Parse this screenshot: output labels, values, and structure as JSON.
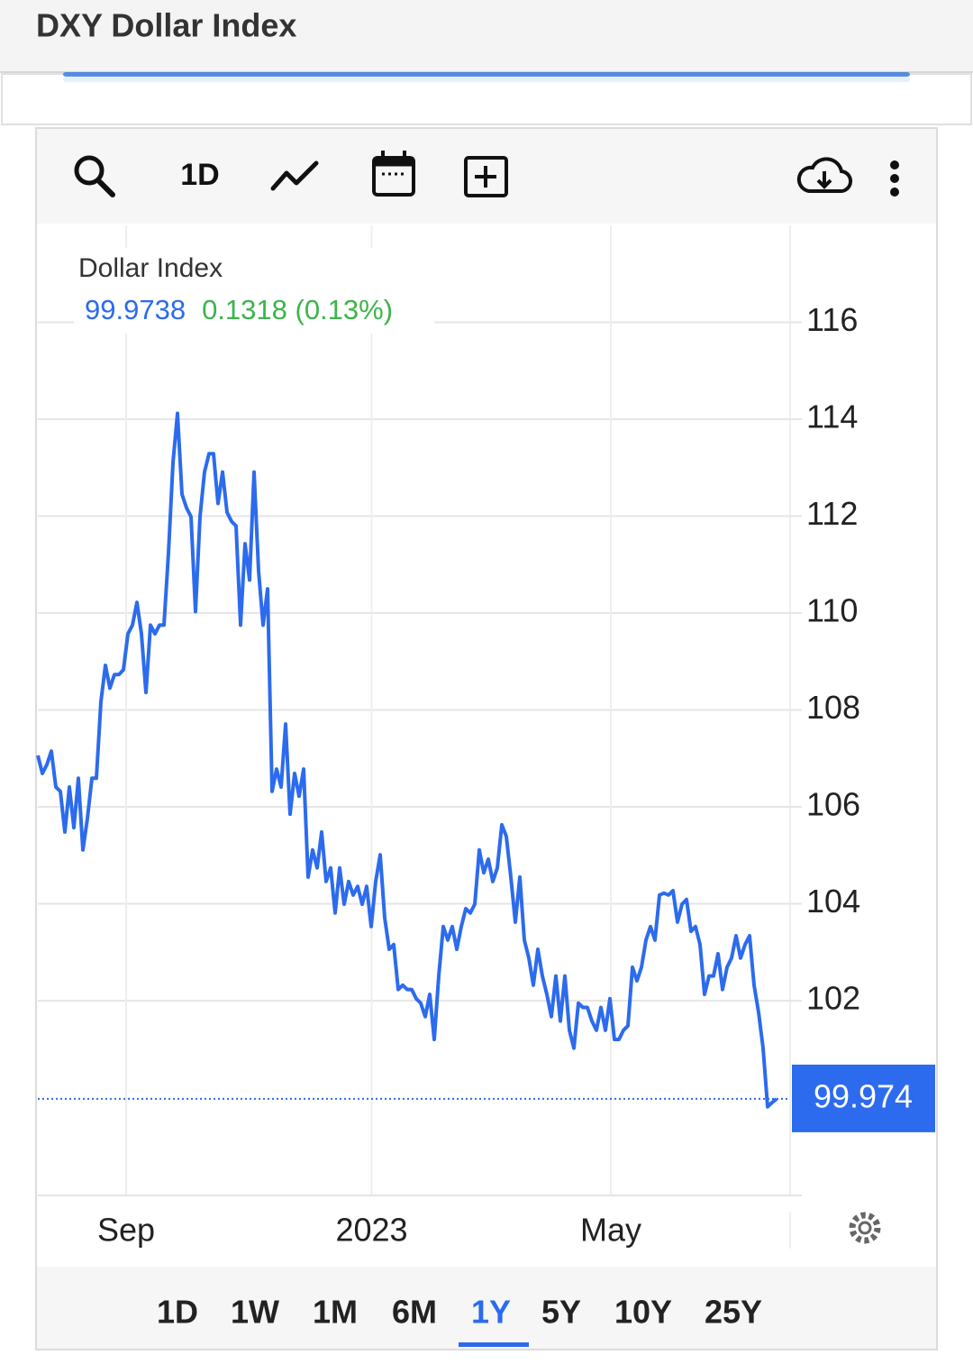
{
  "header": {
    "title": "DXY Dollar Index"
  },
  "toolbar": {
    "interval": "1D"
  },
  "ranges": {
    "buttons": [
      "1D",
      "1W",
      "1M",
      "6M",
      "1Y",
      "5Y",
      "10Y",
      "25Y"
    ],
    "active": 4
  },
  "chart_data": {
    "type": "line",
    "title": "Dollar Index",
    "price": "99.9738",
    "change": "0.1318 (0.13%)",
    "last_label": "99.974",
    "color": "#2c6bed",
    "values": [
      107.06,
      106.69,
      106.87,
      107.15,
      106.41,
      106.32,
      105.48,
      106.41,
      105.57,
      106.59,
      105.11,
      105.76,
      106.59,
      106.59,
      108.17,
      108.92,
      108.45,
      108.73,
      108.73,
      108.83,
      109.57,
      109.75,
      110.22,
      109.57,
      108.36,
      109.75,
      109.57,
      109.75,
      109.75,
      111.24,
      113.1,
      114.12,
      112.45,
      112.17,
      111.99,
      110.03,
      111.99,
      112.91,
      113.29,
      113.29,
      112.26,
      112.91,
      112.08,
      111.89,
      111.8,
      109.75,
      111.43,
      110.68,
      112.91,
      110.87,
      109.75,
      110.5,
      106.32,
      106.78,
      106.41,
      107.71,
      105.85,
      106.69,
      106.22,
      106.78,
      104.55,
      105.11,
      104.74,
      105.48,
      104.46,
      104.74,
      103.81,
      104.74,
      103.99,
      104.46,
      104.18,
      104.36,
      103.99,
      104.36,
      103.53,
      104.46,
      105.01,
      103.71,
      103.06,
      103.16,
      102.23,
      102.32,
      102.23,
      102.23,
      102.04,
      101.95,
      101.67,
      102.13,
      101.2,
      102.51,
      103.53,
      103.25,
      103.53,
      103.06,
      103.53,
      103.9,
      103.81,
      103.99,
      105.11,
      104.64,
      104.92,
      104.46,
      104.74,
      105.63,
      105.39,
      104.55,
      103.62,
      104.55,
      103.25,
      102.88,
      102.32,
      103.06,
      102.51,
      102.13,
      101.67,
      102.51,
      101.58,
      102.51,
      101.39,
      101.02,
      101.95,
      101.86,
      101.86,
      101.58,
      101.39,
      101.86,
      101.39,
      102.04,
      101.2,
      101.2,
      101.39,
      101.48,
      102.69,
      102.41,
      102.69,
      103.25,
      103.53,
      103.25,
      104.18,
      104.22,
      104.18,
      104.27,
      103.62,
      103.99,
      104.09,
      103.43,
      103.53,
      103.16,
      102.13,
      102.51,
      102.51,
      102.97,
      102.23,
      102.69,
      102.88,
      103.34,
      102.88,
      103.16,
      103.34,
      102.32,
      101.76,
      101.02,
      99.81,
      99.9,
      99.9738
    ],
    "xlim": [
      0,
      167
    ],
    "xticks": [
      {
        "value": 19.6,
        "label": "Sep"
      },
      {
        "value": 74.1,
        "label": "2023"
      },
      {
        "value": 127.2,
        "label": "May"
      }
    ],
    "ylim": [
      98,
      118
    ],
    "yticks": [
      102,
      104,
      106,
      108,
      110,
      112,
      114,
      116
    ],
    "grid": true
  }
}
